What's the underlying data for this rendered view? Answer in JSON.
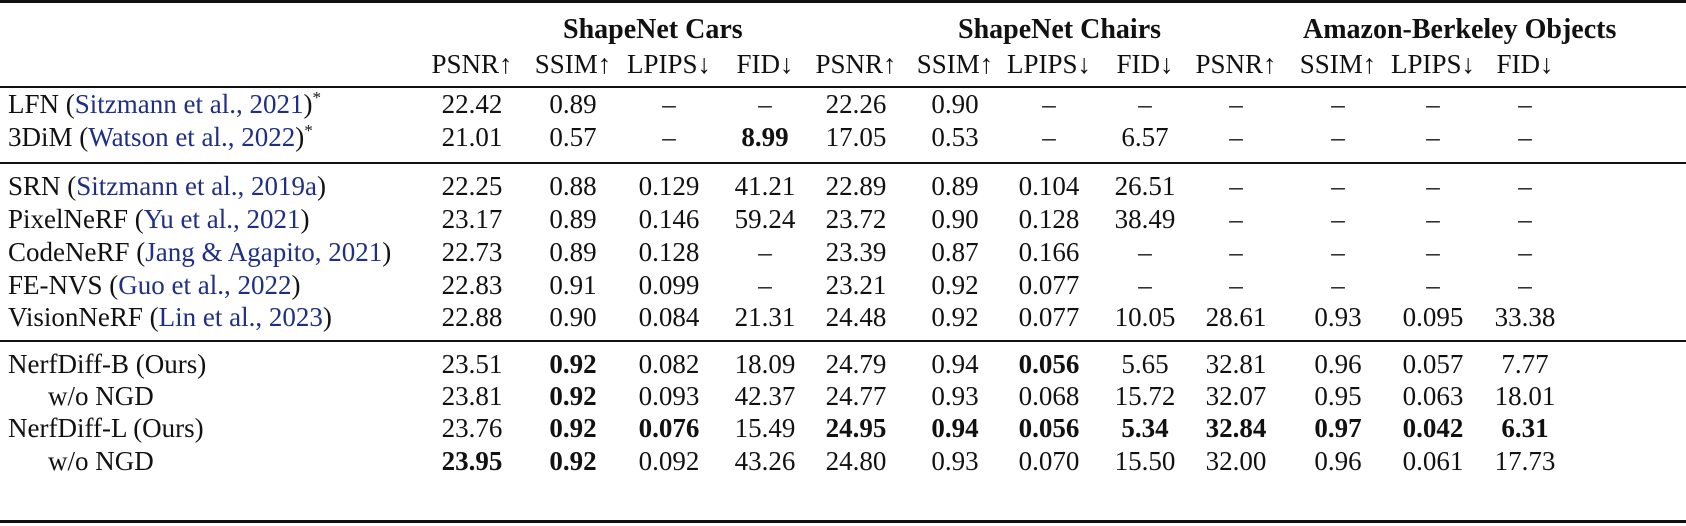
{
  "groups": [
    "ShapeNet Cars",
    "ShapeNet Chairs",
    "Amazon-Berkeley Objects"
  ],
  "metrics": [
    "PSNR↑",
    "SSIM↑",
    "LPIPS↓",
    "FID↓",
    "PSNR↑",
    "SSIM↑",
    "LPIPS↓",
    "FID↓",
    "PSNR↑",
    "SSIM↑",
    "LPIPS↓",
    "FID↓"
  ],
  "sections": [
    [
      {
        "name": "LFN (",
        "cite": "Sitzmann et al., 2021",
        "after": ")",
        "sup": "*",
        "indent": false,
        "values": [
          "22.42",
          "0.89",
          "–",
          "–",
          "22.26",
          "0.90",
          "–",
          "–",
          "–",
          "–",
          "–",
          "–"
        ],
        "bold": []
      },
      {
        "name": "3DiM (",
        "cite": "Watson et al., 2022",
        "after": ")",
        "sup": "*",
        "indent": false,
        "values": [
          "21.01",
          "0.57",
          "–",
          "8.99",
          "17.05",
          "0.53",
          "–",
          "6.57",
          "–",
          "–",
          "–",
          "–"
        ],
        "bold": [
          3
        ]
      }
    ],
    [
      {
        "name": "SRN (",
        "cite": "Sitzmann et al., 2019a",
        "after": ")",
        "sup": "",
        "indent": false,
        "values": [
          "22.25",
          "0.88",
          "0.129",
          "41.21",
          "22.89",
          "0.89",
          "0.104",
          "26.51",
          "–",
          "–",
          "–",
          "–"
        ],
        "bold": []
      },
      {
        "name": "PixelNeRF (",
        "cite": "Yu et al., 2021",
        "after": ")",
        "sup": "",
        "indent": false,
        "values": [
          "23.17",
          "0.89",
          "0.146",
          "59.24",
          "23.72",
          "0.90",
          "0.128",
          "38.49",
          "–",
          "–",
          "–",
          "–"
        ],
        "bold": []
      },
      {
        "name": "CodeNeRF (",
        "cite": "Jang & Agapito, 2021",
        "after": ")",
        "sup": "",
        "indent": false,
        "values": [
          "22.73",
          "0.89",
          "0.128",
          "–",
          "23.39",
          "0.87",
          "0.166",
          "–",
          "–",
          "–",
          "–",
          "–"
        ],
        "bold": []
      },
      {
        "name": "FE-NVS (",
        "cite": "Guo et al., 2022",
        "after": ")",
        "sup": "",
        "indent": false,
        "values": [
          "22.83",
          "0.91",
          "0.099",
          "–",
          "23.21",
          "0.92",
          "0.077",
          "–",
          "–",
          "–",
          "–",
          "–"
        ],
        "bold": []
      },
      {
        "name": "VisionNeRF (",
        "cite": "Lin et al., 2023",
        "after": ")",
        "sup": "",
        "indent": false,
        "values": [
          "22.88",
          "0.90",
          "0.084",
          "21.31",
          "24.48",
          "0.92",
          "0.077",
          "10.05",
          "28.61",
          "0.93",
          "0.095",
          "33.38"
        ],
        "bold": []
      }
    ],
    [
      {
        "name": "NerfDiff-B (Ours)",
        "cite": "",
        "after": "",
        "sup": "",
        "indent": false,
        "values": [
          "23.51",
          "0.92",
          "0.082",
          "18.09",
          "24.79",
          "0.94",
          "0.056",
          "5.65",
          "32.81",
          "0.96",
          "0.057",
          "7.77"
        ],
        "bold": [
          1,
          6
        ]
      },
      {
        "name": "w/o NGD",
        "cite": "",
        "after": "",
        "sup": "",
        "indent": true,
        "values": [
          "23.81",
          "0.92",
          "0.093",
          "42.37",
          "24.77",
          "0.93",
          "0.068",
          "15.72",
          "32.07",
          "0.95",
          "0.063",
          "18.01"
        ],
        "bold": [
          1
        ]
      },
      {
        "name": "NerfDiff-L (Ours)",
        "cite": "",
        "after": "",
        "sup": "",
        "indent": false,
        "values": [
          "23.76",
          "0.92",
          "0.076",
          "15.49",
          "24.95",
          "0.94",
          "0.056",
          "5.34",
          "32.84",
          "0.97",
          "0.042",
          "6.31"
        ],
        "bold": [
          1,
          2,
          4,
          5,
          6,
          7,
          8,
          9,
          10,
          11
        ]
      },
      {
        "name": "w/o NGD",
        "cite": "",
        "after": "",
        "sup": "",
        "indent": true,
        "values": [
          "23.95",
          "0.92",
          "0.092",
          "43.26",
          "24.80",
          "0.93",
          "0.070",
          "15.50",
          "32.00",
          "0.96",
          "0.061",
          "17.73"
        ],
        "bold": [
          0,
          1
        ]
      }
    ]
  ]
}
